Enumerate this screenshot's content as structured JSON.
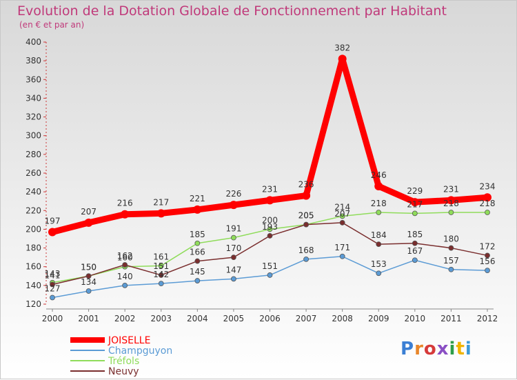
{
  "title": "Evolution de la Dotation Globale de Fonctionnement par Habitant",
  "subtitle": "(en € et par an)",
  "brand": {
    "text": "Proxiti",
    "colors": [
      "#3b7fd4",
      "#e8862a",
      "#d63a3a",
      "#8a4fc4",
      "#2e9e4a",
      "#f0b400",
      "#3b9ad9"
    ]
  },
  "chart_data": {
    "type": "line",
    "title": "Evolution de la Dotation Globale de Fonctionnement par Habitant",
    "subtitle": "(en € et par an)",
    "xlabel": "",
    "ylabel": "",
    "ylim": [
      120,
      400
    ],
    "yticks": [
      120,
      140,
      160,
      180,
      200,
      220,
      240,
      260,
      280,
      300,
      320,
      340,
      360,
      380,
      400
    ],
    "grid": false,
    "legend_position": "bottom-left",
    "x": [
      "2000",
      "2001",
      "2002",
      "2003",
      "2004",
      "2005",
      "2006",
      "2007",
      "2008",
      "2009",
      "2010",
      "2011",
      "2012"
    ],
    "series": [
      {
        "name": "JOISELLE",
        "color": "#ff0000",
        "emphasis": true,
        "values": [
          197,
          207,
          216,
          217,
          221,
          226,
          231,
          236,
          382,
          246,
          229,
          231,
          234
        ],
        "labels": [
          "197",
          "207",
          "216",
          "217",
          "221",
          "226",
          "231",
          "236",
          "382",
          "246",
          "229",
          "231",
          "234"
        ]
      },
      {
        "name": "Champguyon",
        "color": "#5b9bd5",
        "emphasis": false,
        "values": [
          127,
          134,
          140,
          142,
          145,
          147,
          151,
          168,
          171,
          153,
          167,
          157,
          156
        ],
        "labels": [
          "127",
          "134",
          "140",
          "142",
          "145",
          "147",
          "151",
          "168",
          "171",
          "153",
          "167",
          "157",
          "156"
        ]
      },
      {
        "name": "Tréfols",
        "color": "#8fdc5a",
        "emphasis": false,
        "values": [
          143,
          150,
          160,
          161,
          185,
          191,
          200,
          205,
          214,
          218,
          217,
          218,
          218
        ],
        "labels": [
          "143",
          "150",
          "160",
          "161",
          "185",
          "191",
          "200",
          "205",
          "214",
          "218",
          "217",
          "218",
          "218"
        ]
      },
      {
        "name": "Neuvy",
        "color": "#7a2e2e",
        "emphasis": false,
        "values": [
          141,
          150,
          162,
          151,
          166,
          170,
          193,
          205,
          207,
          184,
          185,
          180,
          172
        ],
        "labels": [
          "141",
          "150",
          "162",
          "151",
          "166",
          "170",
          "193",
          "205",
          "207",
          "184",
          "185",
          "180",
          "172"
        ]
      }
    ]
  }
}
